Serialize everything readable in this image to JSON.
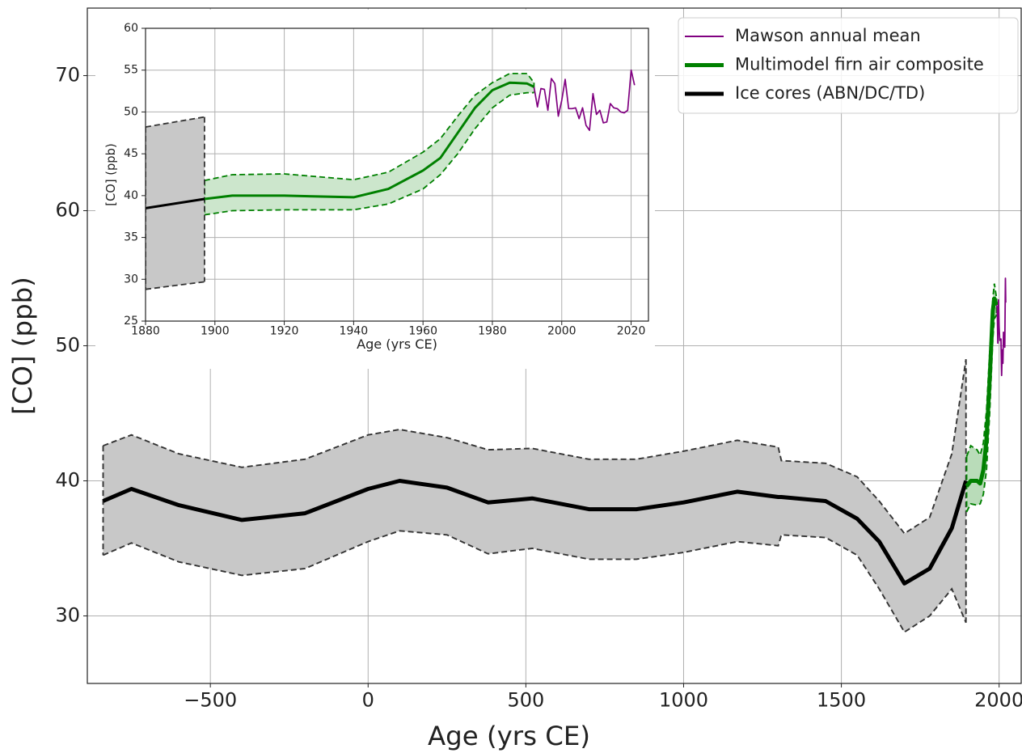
{
  "chart_data": [
    {
      "type": "line",
      "x_label": "Age (yrs CE)",
      "y_label": "[CO] (ppb)",
      "xlim": [
        -890,
        2070
      ],
      "ylim": [
        25,
        75
      ],
      "xticks": [
        {
          "value": -500,
          "label": "−500"
        },
        0,
        500,
        1000,
        1500,
        2000
      ],
      "yticks": [
        30,
        40,
        50,
        60,
        70
      ],
      "grid": true,
      "legend": "upper right",
      "series": [
        {
          "name": "Mawson annual mean",
          "color": "#800080",
          "x": [
            1992,
            1994,
            1996,
            1998,
            2000,
            2002,
            2004,
            2006,
            2008,
            2010,
            2012,
            2014,
            2016,
            2018,
            2020,
            2021
          ],
          "values": [
            53.0,
            52.8,
            50.2,
            53.4,
            51.4,
            50.4,
            50.5,
            50.5,
            47.8,
            49.7,
            48.7,
            51.0,
            50.4,
            49.9,
            55.0,
            53.2
          ]
        },
        {
          "name": "Multimodel firn air composite",
          "color": "#008000",
          "band_color": "#b9dcb9",
          "x": [
            1897,
            1910,
            1930,
            1940,
            1950,
            1960,
            1970,
            1980,
            1985,
            1992
          ],
          "values": [
            39.6,
            40.0,
            40.0,
            39.8,
            40.8,
            43.0,
            47.5,
            52.6,
            53.5,
            53.0
          ],
          "lower": [
            37.7,
            38.3,
            38.2,
            38.3,
            39.0,
            40.8,
            45.0,
            50.5,
            52.0,
            52.3
          ],
          "upper": [
            41.8,
            42.6,
            42.3,
            41.9,
            42.8,
            45.2,
            49.5,
            53.5,
            54.6,
            53.5
          ]
        },
        {
          "name": "Ice cores (ABN/DC/TD)",
          "color": "#000000",
          "band_color": "#c8c8c8",
          "x": [
            -840,
            -750,
            -600,
            -400,
            -200,
            0,
            100,
            250,
            380,
            520,
            700,
            850,
            1000,
            1170,
            1300,
            1310,
            1450,
            1550,
            1620,
            1700,
            1780,
            1850,
            1895
          ],
          "values": [
            38.5,
            39.4,
            38.2,
            37.1,
            37.6,
            39.4,
            40.0,
            39.5,
            38.4,
            38.7,
            37.9,
            37.9,
            38.4,
            39.2,
            38.8,
            38.8,
            38.5,
            37.2,
            35.5,
            32.4,
            33.5,
            36.5,
            40.0
          ],
          "lower": [
            34.5,
            35.4,
            34.0,
            33.0,
            33.5,
            35.5,
            36.3,
            36.0,
            34.6,
            35.0,
            34.2,
            34.2,
            34.7,
            35.5,
            35.2,
            36.0,
            35.8,
            34.5,
            32.0,
            28.8,
            30.0,
            32.0,
            29.5
          ],
          "upper": [
            42.6,
            43.4,
            42.0,
            41.0,
            41.6,
            43.4,
            43.8,
            43.2,
            42.3,
            42.4,
            41.6,
            41.6,
            42.2,
            43.0,
            42.5,
            41.5,
            41.3,
            40.3,
            38.5,
            36.1,
            37.3,
            42.0,
            49.0
          ]
        }
      ]
    },
    {
      "type": "line",
      "x_label": "Age (yrs CE)",
      "y_label": "[CO] (ppb)",
      "xlim": [
        1880,
        2025
      ],
      "ylim": [
        25,
        60
      ],
      "xticks": [
        1880,
        1900,
        1920,
        1940,
        1960,
        1980,
        2000,
        2020
      ],
      "yticks": [
        25,
        30,
        35,
        40,
        45,
        50,
        55,
        60
      ],
      "grid": true,
      "series": [
        {
          "color": "#000000",
          "band_color": "#c8c8c8",
          "x": [
            1880,
            1897
          ],
          "values": [
            38.5,
            39.6
          ],
          "lower": [
            28.8,
            29.7
          ],
          "upper": [
            48.2,
            49.4
          ]
        },
        {
          "color": "#008000",
          "band_color": "#cce6cc",
          "x": [
            1897,
            1905,
            1920,
            1940,
            1950,
            1960,
            1965,
            1970,
            1975,
            1980,
            1985,
            1990,
            1992
          ],
          "values": [
            39.6,
            40.0,
            40.0,
            39.8,
            40.8,
            43.0,
            44.5,
            47.5,
            50.5,
            52.6,
            53.5,
            53.4,
            53.0
          ],
          "lower": [
            37.7,
            38.2,
            38.3,
            38.3,
            39.0,
            40.8,
            42.5,
            45.0,
            48.0,
            50.5,
            52.0,
            52.3,
            52.3
          ],
          "upper": [
            41.8,
            42.5,
            42.6,
            41.9,
            42.8,
            45.2,
            46.8,
            49.5,
            52.0,
            53.5,
            54.6,
            54.6,
            53.5
          ]
        },
        {
          "color": "#800080",
          "x": [
            1992,
            1993,
            1994,
            1995,
            1996,
            1997,
            1998,
            1999,
            2000,
            2001,
            2002,
            2003,
            2004,
            2005,
            2006,
            2007,
            2008,
            2009,
            2010,
            2011,
            2012,
            2013,
            2014,
            2015,
            2016,
            2017,
            2018,
            2019,
            2020,
            2021
          ],
          "values": [
            53.0,
            50.6,
            52.8,
            52.7,
            50.2,
            54.0,
            53.4,
            49.5,
            51.4,
            53.9,
            50.4,
            50.4,
            50.5,
            49.2,
            50.5,
            48.4,
            47.8,
            52.2,
            49.7,
            50.2,
            48.7,
            48.8,
            51.0,
            50.5,
            50.4,
            50.0,
            49.9,
            50.2,
            55.0,
            53.2
          ]
        }
      ]
    }
  ]
}
